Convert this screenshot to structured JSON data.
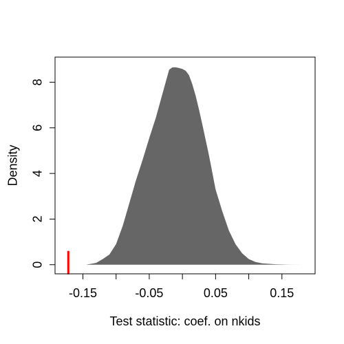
{
  "chart_data": {
    "type": "area",
    "title": "",
    "xlabel": "Test statistic: coef. on nkids",
    "ylabel": "Density",
    "xlim": [
      -0.192,
      0.2
    ],
    "ylim": [
      -0.4,
      9.1
    ],
    "x_ticks": [
      -0.15,
      -0.1,
      -0.05,
      0,
      0.05,
      0.1,
      0.15
    ],
    "x_tick_labels": [
      "-0.15",
      "",
      "-0.05",
      "",
      "0.05",
      "",
      "0.15"
    ],
    "y_ticks": [
      0,
      2,
      4,
      6,
      8
    ],
    "y_tick_labels": [
      "0",
      "2",
      "4",
      "6",
      "8"
    ],
    "grid": false,
    "fill_color": "#666666",
    "density": {
      "x": [
        -0.145,
        -0.13,
        -0.12,
        -0.11,
        -0.1,
        -0.09,
        -0.08,
        -0.07,
        -0.06,
        -0.05,
        -0.04,
        -0.03,
        -0.02,
        -0.015,
        -0.01,
        -0.005,
        0,
        0.005,
        0.01,
        0.015,
        0.02,
        0.025,
        0.03,
        0.04,
        0.05,
        0.06,
        0.07,
        0.08,
        0.09,
        0.1,
        0.11,
        0.12,
        0.14,
        0.16,
        0.18
      ],
      "y": [
        0,
        0.08,
        0.25,
        0.45,
        0.9,
        1.7,
        2.7,
        3.7,
        4.6,
        5.55,
        6.45,
        7.5,
        8.55,
        8.65,
        8.65,
        8.62,
        8.58,
        8.5,
        8.3,
        7.9,
        7.4,
        6.8,
        6.15,
        4.8,
        3.3,
        2.35,
        1.5,
        0.9,
        0.5,
        0.25,
        0.12,
        0.06,
        0.02,
        0.005,
        0
      ]
    },
    "observed_statistic": {
      "x": -0.172,
      "color": "#ff0000"
    }
  }
}
